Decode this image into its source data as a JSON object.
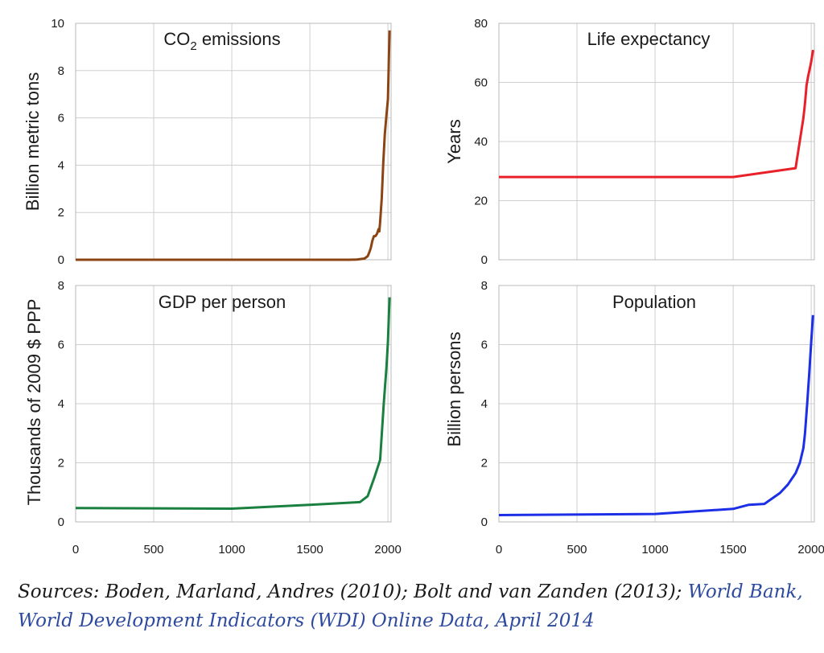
{
  "chart_data": [
    {
      "type": "line",
      "title": "CO",
      "title_subscript": "2",
      "title_suffix": " emissions",
      "ylabel": "Billion metric tons",
      "xlim": [
        0,
        2020
      ],
      "ylim": [
        0,
        10
      ],
      "yticks": [
        0,
        2,
        4,
        6,
        8,
        10
      ],
      "xticks": [],
      "color": "#8b4513",
      "series": [
        {
          "name": "CO2 emissions",
          "x": [
            0,
            1750,
            1800,
            1850,
            1870,
            1880,
            1890,
            1900,
            1910,
            1920,
            1930,
            1940,
            1945,
            1950,
            1960,
            1970,
            1980,
            1990,
            2000,
            2010
          ],
          "y": [
            0,
            0,
            0.01,
            0.05,
            0.15,
            0.3,
            0.5,
            0.8,
            1.0,
            1.0,
            1.1,
            1.3,
            1.2,
            1.6,
            2.6,
            4.1,
            5.3,
            6.1,
            6.8,
            9.7
          ]
        }
      ]
    },
    {
      "type": "line",
      "title": "Life expectancy",
      "ylabel": "Years",
      "xlim": [
        0,
        2020
      ],
      "ylim": [
        0,
        80
      ],
      "yticks": [
        0,
        20,
        40,
        60,
        80
      ],
      "xticks": [],
      "color": "#e8202a",
      "series": [
        {
          "name": "Life expectancy",
          "x": [
            0,
            1500,
            1900,
            1950,
            1960,
            1970,
            1980,
            1990,
            2000,
            2012
          ],
          "y": [
            28,
            28,
            31,
            48,
            53,
            59,
            62,
            64.5,
            67,
            71
          ]
        }
      ]
    },
    {
      "type": "line",
      "title": "GDP per person",
      "ylabel": "Thousands of 2009 $ PPP",
      "xlim": [
        0,
        2020
      ],
      "ylim": [
        0,
        8
      ],
      "yticks": [
        0,
        2,
        4,
        6,
        8
      ],
      "xticks": [
        0,
        500,
        1000,
        1500,
        2000
      ],
      "color": "#1a8040",
      "series": [
        {
          "name": "GDP per person",
          "x": [
            0,
            1000,
            1500,
            1820,
            1870,
            1913,
            1950,
            1973,
            1990,
            2000,
            2010
          ],
          "y": [
            0.47,
            0.45,
            0.58,
            0.67,
            0.87,
            1.5,
            2.1,
            4.0,
            5.2,
            6.1,
            7.6
          ]
        }
      ]
    },
    {
      "type": "line",
      "title": "Population",
      "ylabel": "Billion persons",
      "xlim": [
        0,
        2020
      ],
      "ylim": [
        0,
        8
      ],
      "yticks": [
        0,
        2,
        4,
        6,
        8
      ],
      "xticks": [
        0,
        500,
        1000,
        1500,
        2000
      ],
      "color": "#1c2ee6",
      "series": [
        {
          "name": "Population",
          "x": [
            0,
            1000,
            1500,
            1600,
            1700,
            1800,
            1850,
            1900,
            1927,
            1950,
            1960,
            1974,
            1987,
            1999,
            2011
          ],
          "y": [
            0.23,
            0.27,
            0.44,
            0.58,
            0.61,
            0.98,
            1.26,
            1.65,
            2.0,
            2.5,
            3.0,
            4.0,
            5.0,
            6.0,
            7.0
          ]
        }
      ]
    }
  ],
  "sources": {
    "plain": "Sources: Boden, Marland, Andres (2010); Bolt and van Zanden (2013); ",
    "link": "World Bank, World Development Indicators (WDI) Online Data, April 2014"
  }
}
